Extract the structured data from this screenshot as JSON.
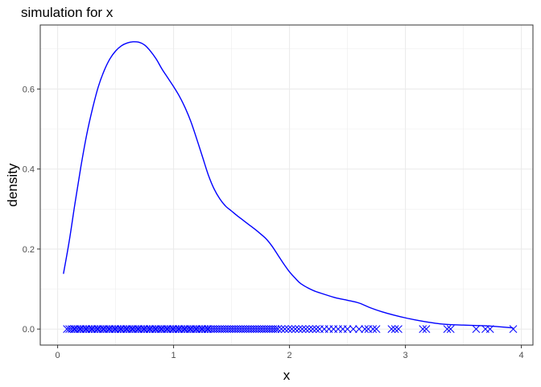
{
  "chart_data": {
    "type": "line",
    "title": "simulation for x",
    "xlabel": "x",
    "ylabel": "density",
    "xlim": [
      -0.15,
      4.1
    ],
    "ylim": [
      -0.04,
      0.76
    ],
    "x_ticks": [
      0,
      1,
      2,
      3,
      4
    ],
    "x_tick_labels": [
      "0",
      "1",
      "2",
      "3",
      "4"
    ],
    "y_ticks": [
      0.0,
      0.2,
      0.4,
      0.6
    ],
    "y_tick_labels": [
      "0.0",
      "0.2",
      "0.4",
      "0.6"
    ],
    "grid": true,
    "theme": "black-and-white",
    "colors": {
      "series": "#0000ff",
      "grid": "#ebebeb",
      "panel_border": "#333333"
    },
    "series": [
      {
        "type": "line",
        "x": [
          0.05,
          0.1,
          0.15,
          0.2,
          0.25,
          0.3,
          0.35,
          0.4,
          0.45,
          0.5,
          0.55,
          0.6,
          0.65,
          0.7,
          0.75,
          0.8,
          0.85,
          0.9,
          0.95,
          1.0,
          1.05,
          1.1,
          1.15,
          1.2,
          1.25,
          1.3,
          1.35,
          1.4,
          1.45,
          1.5,
          1.55,
          1.6,
          1.65,
          1.7,
          1.75,
          1.8,
          1.85,
          1.9,
          1.95,
          2.0,
          2.05,
          2.1,
          2.2,
          2.3,
          2.4,
          2.5,
          2.6,
          2.7,
          2.8,
          2.9,
          3.0,
          3.1,
          3.2,
          3.3,
          3.4,
          3.5,
          3.6,
          3.7,
          3.8,
          3.93
        ],
        "y": [
          0.138,
          0.22,
          0.315,
          0.405,
          0.485,
          0.55,
          0.605,
          0.645,
          0.675,
          0.695,
          0.708,
          0.715,
          0.718,
          0.717,
          0.71,
          0.695,
          0.675,
          0.65,
          0.628,
          0.606,
          0.582,
          0.553,
          0.518,
          0.475,
          0.43,
          0.385,
          0.35,
          0.325,
          0.307,
          0.295,
          0.283,
          0.272,
          0.261,
          0.25,
          0.238,
          0.225,
          0.207,
          0.185,
          0.163,
          0.143,
          0.127,
          0.113,
          0.097,
          0.087,
          0.078,
          0.072,
          0.065,
          0.053,
          0.043,
          0.035,
          0.028,
          0.022,
          0.017,
          0.013,
          0.011,
          0.01,
          0.009,
          0.008,
          0.006,
          0.003
        ]
      },
      {
        "type": "rug-points",
        "marker": "x",
        "y": 0,
        "x": [
          0.08,
          0.1,
          0.12,
          0.14,
          0.15,
          0.17,
          0.19,
          0.2,
          0.22,
          0.24,
          0.25,
          0.27,
          0.29,
          0.3,
          0.32,
          0.34,
          0.35,
          0.37,
          0.39,
          0.4,
          0.42,
          0.44,
          0.45,
          0.47,
          0.49,
          0.5,
          0.52,
          0.54,
          0.55,
          0.57,
          0.59,
          0.6,
          0.62,
          0.64,
          0.65,
          0.67,
          0.69,
          0.7,
          0.72,
          0.74,
          0.75,
          0.77,
          0.79,
          0.8,
          0.82,
          0.84,
          0.85,
          0.87,
          0.89,
          0.9,
          0.92,
          0.94,
          0.95,
          0.97,
          0.99,
          1.0,
          1.02,
          1.04,
          1.05,
          1.07,
          1.09,
          1.1,
          1.12,
          1.14,
          1.15,
          1.17,
          1.19,
          1.2,
          1.22,
          1.24,
          1.25,
          1.27,
          1.29,
          1.3,
          1.32,
          1.34,
          1.36,
          1.38,
          1.4,
          1.42,
          1.44,
          1.46,
          1.48,
          1.5,
          1.52,
          1.54,
          1.56,
          1.58,
          1.6,
          1.62,
          1.64,
          1.66,
          1.68,
          1.7,
          1.72,
          1.74,
          1.76,
          1.78,
          1.8,
          1.82,
          1.84,
          1.86,
          1.88,
          1.9,
          1.93,
          1.96,
          1.99,
          2.02,
          2.05,
          2.08,
          2.11,
          2.14,
          2.17,
          2.2,
          2.23,
          2.26,
          2.3,
          2.34,
          2.38,
          2.42,
          2.46,
          2.5,
          2.55,
          2.6,
          2.65,
          2.68,
          2.72,
          2.75,
          2.88,
          2.91,
          2.94,
          3.15,
          3.18,
          3.36,
          3.39,
          3.61,
          3.69,
          3.73,
          3.93
        ]
      }
    ]
  }
}
